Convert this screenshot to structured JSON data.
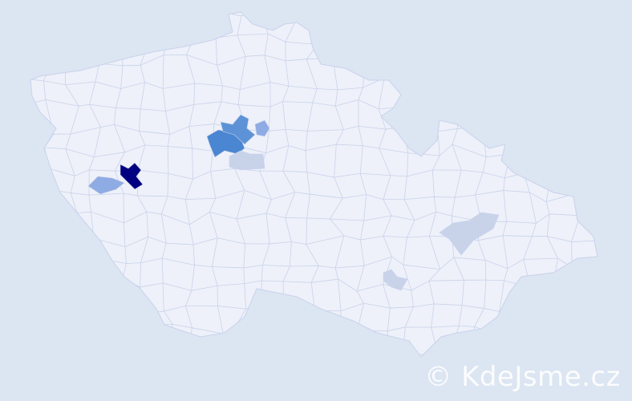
{
  "map": {
    "background_color": "#dce5f2",
    "base_fill": "#eef1f9",
    "border_color": "#c9d2ec",
    "highlighted_regions": [
      {
        "color": "#000080",
        "level": "highest"
      },
      {
        "color": "#4a86d1",
        "level": "high"
      },
      {
        "color": "#5d93d6",
        "level": "high"
      },
      {
        "color": "#8fabe3",
        "level": "medium"
      },
      {
        "color": "#8fabe3",
        "level": "medium"
      },
      {
        "color": "#c8d3ea",
        "level": "low"
      },
      {
        "color": "#c8d3ea",
        "level": "low"
      },
      {
        "color": "#c8d3ea",
        "level": "low"
      }
    ]
  },
  "watermark": {
    "text": "© KdeJsme.cz"
  }
}
